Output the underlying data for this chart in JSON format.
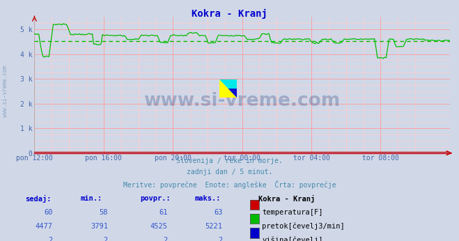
{
  "title": "Kokra - Kranj",
  "title_color": "#0000cc",
  "bg_color": "#d0d8e8",
  "x_labels": [
    "pon 12:00",
    "pon 16:00",
    "pon 20:00",
    "tor 00:00",
    "tor 04:00",
    "tor 08:00"
  ],
  "x_ticks_frac": [
    0.0,
    0.1667,
    0.3333,
    0.5,
    0.6667,
    0.8333
  ],
  "ylim": [
    0,
    5500
  ],
  "yticks": [
    0,
    1000,
    2000,
    3000,
    4000,
    5000
  ],
  "ytick_labels": [
    "0",
    "1 k",
    "2 k",
    "3 k",
    "4 k",
    "5 k"
  ],
  "grid_major_color": "#ff9999",
  "grid_minor_color": "#ffcccc",
  "watermark_text": "www.si-vreme.com",
  "watermark_color": "#1a3a7a",
  "watermark_alpha": 0.28,
  "subtitle_lines": [
    "Slovenija / reke in morje.",
    "zadnji dan / 5 minut.",
    "Meritve: povprečne  Enote: angleške  Črta: povprečje"
  ],
  "subtitle_color": "#4488aa",
  "table_headers": [
    "sedaj:",
    "min.:",
    "povpr.:",
    "maks.:"
  ],
  "table_header_color": "#0000cc",
  "table_label": "Kokra - Kranj",
  "table_data": [
    {
      "sedaj": "60",
      "min": "58",
      "povpr": "61",
      "maks": "63",
      "color": "#cc0000",
      "label": "temperatura[F]"
    },
    {
      "sedaj": "4477",
      "min": "3791",
      "povpr": "4525",
      "maks": "5221",
      "color": "#00bb00",
      "label": "pretok[čevelj3/min]"
    },
    {
      "sedaj": "2",
      "min": "2",
      "povpr": "2",
      "maks": "2",
      "color": "#0000cc",
      "label": "višina[čevelj]"
    }
  ],
  "avg_flow": 4525,
  "flow_color": "#00bb00",
  "temp_color": "#cc0000",
  "height_color": "#0000cc",
  "avg_line_color": "#00bb00",
  "n_points": 288
}
